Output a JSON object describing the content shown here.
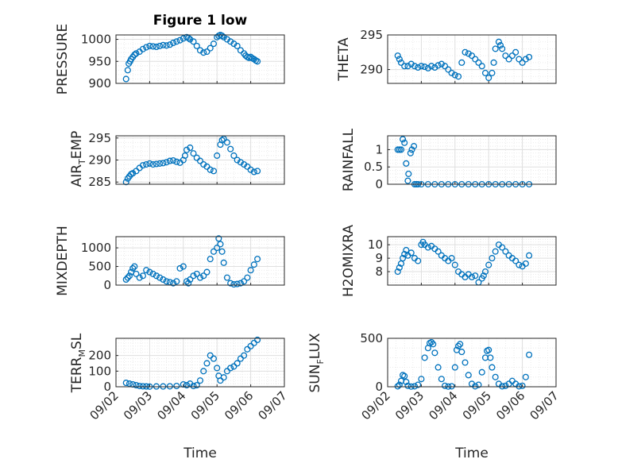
{
  "figure": {
    "title": "Figure 1 low"
  },
  "colors": {
    "marker": "#0072BD",
    "axis": "#262626",
    "grid": "#dfdfdf",
    "background": "#ffffff"
  },
  "chart_data": [
    {
      "type": "scatter",
      "name": "pressure",
      "ylabel": "PRESSURE",
      "ylim": [
        900,
        1010
      ],
      "yticks": [
        900,
        950,
        1000
      ],
      "yticklabels": [
        "900",
        "950",
        "1000"
      ],
      "xlim": [
        0,
        5
      ],
      "xticks": [
        0,
        1,
        2,
        3,
        4,
        5
      ],
      "xticklabels": [
        "09/02",
        "09/03",
        "09/04",
        "09/05",
        "09/06",
        "09/07"
      ],
      "show_xticklabels": false,
      "x": [
        0.3,
        0.35,
        0.38,
        0.42,
        0.45,
        0.5,
        0.55,
        0.6,
        0.7,
        0.8,
        0.9,
        1.0,
        1.1,
        1.2,
        1.3,
        1.4,
        1.5,
        1.6,
        1.7,
        1.8,
        1.9,
        2.0,
        2.1,
        2.15,
        2.2,
        2.3,
        2.4,
        2.5,
        2.6,
        2.7,
        2.8,
        2.9,
        3.0,
        3.05,
        3.1,
        3.15,
        3.2,
        3.3,
        3.4,
        3.5,
        3.6,
        3.7,
        3.8,
        3.85,
        3.9,
        3.95,
        4.0,
        4.05,
        4.1,
        4.15,
        4.2
      ],
      "y": [
        910,
        930,
        945,
        950,
        955,
        960,
        965,
        968,
        972,
        978,
        982,
        985,
        984,
        983,
        985,
        987,
        986,
        988,
        992,
        995,
        998,
        1002,
        1005,
        1003,
        1000,
        995,
        985,
        975,
        970,
        972,
        980,
        990,
        1005,
        1008,
        1010,
        1008,
        1005,
        1000,
        995,
        990,
        985,
        975,
        968,
        963,
        960,
        958,
        960,
        957,
        955,
        952,
        950
      ]
    },
    {
      "type": "scatter",
      "name": "theta",
      "ylabel": "THETA",
      "ylim": [
        288,
        295
      ],
      "yticks": [
        290,
        295
      ],
      "yticklabels": [
        "290",
        "295"
      ],
      "xlim": [
        0,
        5
      ],
      "xticks": [
        0,
        1,
        2,
        3,
        4,
        5
      ],
      "xticklabels": [
        "09/02",
        "09/03",
        "09/04",
        "09/05",
        "09/06",
        "09/07"
      ],
      "show_xticklabels": false,
      "x": [
        0.3,
        0.35,
        0.4,
        0.5,
        0.6,
        0.7,
        0.8,
        0.9,
        1.0,
        1.1,
        1.2,
        1.3,
        1.4,
        1.5,
        1.6,
        1.7,
        1.8,
        1.9,
        2.0,
        2.1,
        2.2,
        2.3,
        2.4,
        2.5,
        2.6,
        2.7,
        2.8,
        2.9,
        3.0,
        3.1,
        3.15,
        3.2,
        3.3,
        3.35,
        3.4,
        3.5,
        3.6,
        3.7,
        3.8,
        3.9,
        4.0,
        4.1,
        4.2
      ],
      "y": [
        292,
        291.5,
        291,
        290.5,
        290.5,
        290.8,
        290.5,
        290.3,
        290.5,
        290.4,
        290.2,
        290.5,
        290.3,
        290.6,
        290.8,
        290.5,
        290,
        289.5,
        289.2,
        289,
        291,
        292.5,
        292.3,
        292,
        291.5,
        291,
        290.5,
        289.5,
        288.8,
        289.5,
        291,
        293,
        294,
        293.5,
        293,
        292,
        291.5,
        292,
        292.5,
        291.5,
        291,
        291.5,
        291.8
      ]
    },
    {
      "type": "scatter",
      "name": "air_temp",
      "ylabel": "AIR_TEMP",
      "ylim": [
        284.5,
        295.5
      ],
      "yticks": [
        285,
        290,
        295
      ],
      "yticklabels": [
        "285",
        "290",
        "295"
      ],
      "xlim": [
        0,
        5
      ],
      "xticks": [
        0,
        1,
        2,
        3,
        4,
        5
      ],
      "xticklabels": [
        "09/02",
        "09/03",
        "09/04",
        "09/05",
        "09/06",
        "09/07"
      ],
      "show_xticklabels": false,
      "x": [
        0.3,
        0.35,
        0.4,
        0.45,
        0.5,
        0.6,
        0.7,
        0.8,
        0.9,
        1.0,
        1.1,
        1.2,
        1.3,
        1.4,
        1.5,
        1.6,
        1.7,
        1.8,
        1.9,
        2.0,
        2.05,
        2.1,
        2.2,
        2.3,
        2.4,
        2.5,
        2.6,
        2.7,
        2.8,
        2.9,
        3.0,
        3.1,
        3.15,
        3.2,
        3.3,
        3.4,
        3.5,
        3.6,
        3.7,
        3.8,
        3.9,
        4.0,
        4.1,
        4.2
      ],
      "y": [
        285,
        285.8,
        286.3,
        286.8,
        287,
        287.5,
        288.2,
        288.8,
        289,
        289.2,
        289,
        289.1,
        289.2,
        289.3,
        289.5,
        289.8,
        289.9,
        289.6,
        289.4,
        290,
        291,
        292.3,
        292.8,
        291.5,
        290.5,
        289.8,
        289,
        288.5,
        287.8,
        287.5,
        291,
        293.5,
        294.5,
        294.8,
        294,
        292.5,
        291,
        290,
        289.5,
        289,
        288.5,
        287.8,
        287.3,
        287.5
      ]
    },
    {
      "type": "scatter",
      "name": "rainfall",
      "ylabel": "RAINFALL",
      "ylim": [
        0,
        1.4
      ],
      "yticks": [
        0,
        0.5,
        1
      ],
      "yticklabels": [
        "0",
        "0.5",
        "1"
      ],
      "xlim": [
        0,
        5
      ],
      "xticks": [
        0,
        1,
        2,
        3,
        4,
        5
      ],
      "xticklabels": [
        "09/02",
        "09/03",
        "09/04",
        "09/05",
        "09/06",
        "09/07"
      ],
      "show_xticklabels": false,
      "x": [
        0.3,
        0.35,
        0.4,
        0.45,
        0.5,
        0.55,
        0.6,
        0.62,
        0.68,
        0.72,
        0.78,
        0.8,
        0.85,
        0.9,
        1.0,
        1.2,
        1.4,
        1.6,
        1.8,
        2.0,
        2.2,
        2.4,
        2.6,
        2.8,
        3.0,
        3.2,
        3.4,
        3.6,
        3.8,
        4.0,
        4.2
      ],
      "y": [
        1,
        1,
        1,
        1.3,
        1.2,
        0.6,
        0.1,
        0.3,
        0.9,
        1,
        1.1,
        0,
        0,
        0,
        0,
        0,
        0,
        0,
        0,
        0,
        0,
        0,
        0,
        0,
        0,
        0,
        0,
        0,
        0,
        0,
        0
      ]
    },
    {
      "type": "scatter",
      "name": "mixdepth",
      "ylabel": "MIXDEPTH",
      "ylim": [
        0,
        1300
      ],
      "yticks": [
        0,
        500,
        1000
      ],
      "yticklabels": [
        "0",
        "500",
        "1000"
      ],
      "xlim": [
        0,
        5
      ],
      "xticks": [
        0,
        1,
        2,
        3,
        4,
        5
      ],
      "xticklabels": [
        "09/02",
        "09/03",
        "09/04",
        "09/05",
        "09/06",
        "09/07"
      ],
      "show_xticklabels": false,
      "x": [
        0.3,
        0.35,
        0.4,
        0.45,
        0.5,
        0.55,
        0.6,
        0.7,
        0.8,
        0.9,
        1.0,
        1.1,
        1.2,
        1.3,
        1.4,
        1.5,
        1.6,
        1.7,
        1.8,
        1.9,
        2.0,
        2.1,
        2.15,
        2.2,
        2.3,
        2.4,
        2.5,
        2.6,
        2.7,
        2.8,
        2.9,
        3.0,
        3.05,
        3.1,
        3.15,
        3.2,
        3.3,
        3.4,
        3.5,
        3.6,
        3.7,
        3.8,
        3.9,
        4.0,
        4.1,
        4.2
      ],
      "y": [
        150,
        200,
        250,
        350,
        450,
        500,
        300,
        200,
        250,
        400,
        350,
        300,
        250,
        200,
        150,
        100,
        80,
        50,
        100,
        450,
        500,
        100,
        50,
        150,
        250,
        300,
        200,
        250,
        350,
        700,
        900,
        1000,
        1250,
        1100,
        900,
        600,
        200,
        50,
        20,
        30,
        50,
        100,
        200,
        400,
        550,
        700
      ]
    },
    {
      "type": "scatter",
      "name": "h2omixra",
      "ylabel": "H2OMIXRA",
      "ylim": [
        7,
        10.6
      ],
      "yticks": [
        8,
        9,
        10
      ],
      "yticklabels": [
        "8",
        "9",
        "10"
      ],
      "xlim": [
        0,
        5
      ],
      "xticks": [
        0,
        1,
        2,
        3,
        4,
        5
      ],
      "xticklabels": [
        "09/02",
        "09/03",
        "09/04",
        "09/05",
        "09/06",
        "09/07"
      ],
      "show_xticklabels": false,
      "x": [
        0.3,
        0.35,
        0.4,
        0.45,
        0.5,
        0.55,
        0.6,
        0.7,
        0.8,
        0.9,
        1.0,
        1.05,
        1.1,
        1.2,
        1.3,
        1.4,
        1.5,
        1.6,
        1.7,
        1.8,
        1.9,
        2.0,
        2.1,
        2.2,
        2.3,
        2.4,
        2.5,
        2.6,
        2.7,
        2.8,
        2.85,
        2.9,
        3.0,
        3.1,
        3.2,
        3.3,
        3.4,
        3.5,
        3.6,
        3.7,
        3.8,
        3.9,
        4.0,
        4.1,
        4.2
      ],
      "y": [
        8,
        8.3,
        8.6,
        9,
        9.3,
        9.6,
        9.2,
        9.4,
        9,
        8.8,
        10,
        10.2,
        10,
        9.8,
        9.9,
        9.7,
        9.5,
        9.2,
        9,
        8.8,
        9,
        8.5,
        8,
        7.8,
        7.6,
        7.8,
        7.6,
        7.7,
        7.2,
        7.5,
        7.7,
        8,
        8.5,
        9,
        9.5,
        10,
        9.8,
        9.5,
        9.2,
        9,
        8.8,
        8.5,
        8.4,
        8.6,
        9.2
      ]
    },
    {
      "type": "scatter",
      "name": "terr_msl",
      "ylabel": "TERR_MSL",
      "ylim": [
        0,
        310
      ],
      "yticks": [
        0,
        100,
        200
      ],
      "yticklabels": [
        "0",
        "100",
        "200"
      ],
      "xlim": [
        0,
        5
      ],
      "xticks": [
        0,
        1,
        2,
        3,
        4,
        5
      ],
      "xticklabels": [
        "09/02",
        "09/03",
        "09/04",
        "09/05",
        "09/06",
        "09/07"
      ],
      "show_xticklabels": true,
      "x": [
        0.3,
        0.4,
        0.5,
        0.6,
        0.7,
        0.8,
        0.9,
        1.0,
        1.2,
        1.4,
        1.6,
        1.8,
        2.0,
        2.1,
        2.2,
        2.3,
        2.4,
        2.5,
        2.6,
        2.7,
        2.8,
        2.9,
        3.0,
        3.05,
        3.1,
        3.2,
        3.3,
        3.4,
        3.5,
        3.6,
        3.7,
        3.8,
        3.9,
        4.0,
        4.1,
        4.2
      ],
      "y": [
        25,
        20,
        15,
        10,
        5,
        3,
        2,
        1,
        2,
        2,
        3,
        5,
        15,
        10,
        20,
        5,
        10,
        40,
        100,
        150,
        200,
        180,
        120,
        70,
        40,
        60,
        100,
        120,
        130,
        150,
        180,
        200,
        240,
        260,
        280,
        300
      ]
    },
    {
      "type": "scatter",
      "name": "sun_flux",
      "ylabel": "SUN_FLUX",
      "ylim": [
        0,
        500
      ],
      "yticks": [
        0,
        500
      ],
      "yticklabels": [
        "0",
        "500"
      ],
      "xlim": [
        0,
        5
      ],
      "xticks": [
        0,
        1,
        2,
        3,
        4,
        5
      ],
      "xticklabels": [
        "09/02",
        "09/03",
        "09/04",
        "09/05",
        "09/06",
        "09/07"
      ],
      "show_xticklabels": true,
      "x": [
        0.3,
        0.35,
        0.4,
        0.45,
        0.5,
        0.55,
        0.6,
        0.7,
        0.8,
        0.9,
        1.0,
        1.1,
        1.2,
        1.25,
        1.3,
        1.35,
        1.4,
        1.5,
        1.6,
        1.7,
        1.8,
        1.9,
        2.0,
        2.05,
        2.1,
        2.15,
        2.2,
        2.3,
        2.4,
        2.5,
        2.6,
        2.7,
        2.8,
        2.9,
        2.95,
        3.0,
        3.05,
        3.1,
        3.2,
        3.3,
        3.4,
        3.5,
        3.6,
        3.7,
        3.8,
        3.9,
        4.0,
        4.1,
        4.2
      ],
      "y": [
        5,
        20,
        60,
        120,
        110,
        50,
        10,
        2,
        5,
        20,
        80,
        300,
        400,
        450,
        460,
        440,
        350,
        200,
        80,
        10,
        2,
        5,
        200,
        380,
        420,
        440,
        360,
        250,
        120,
        30,
        5,
        20,
        150,
        300,
        370,
        380,
        300,
        200,
        100,
        30,
        5,
        10,
        30,
        60,
        30,
        5,
        10,
        100,
        330
      ]
    }
  ],
  "labels": {
    "time_left": "Time",
    "time_right": "Time",
    "air_temp": {
      "main": "AIR",
      "sub": "T",
      "rest": "EMP"
    },
    "terr_msl": {
      "main": "TERR",
      "sub": "M",
      "rest": "SL"
    },
    "sun_flux": {
      "main": "SUN",
      "sub": "F",
      "rest": "LUX"
    }
  }
}
